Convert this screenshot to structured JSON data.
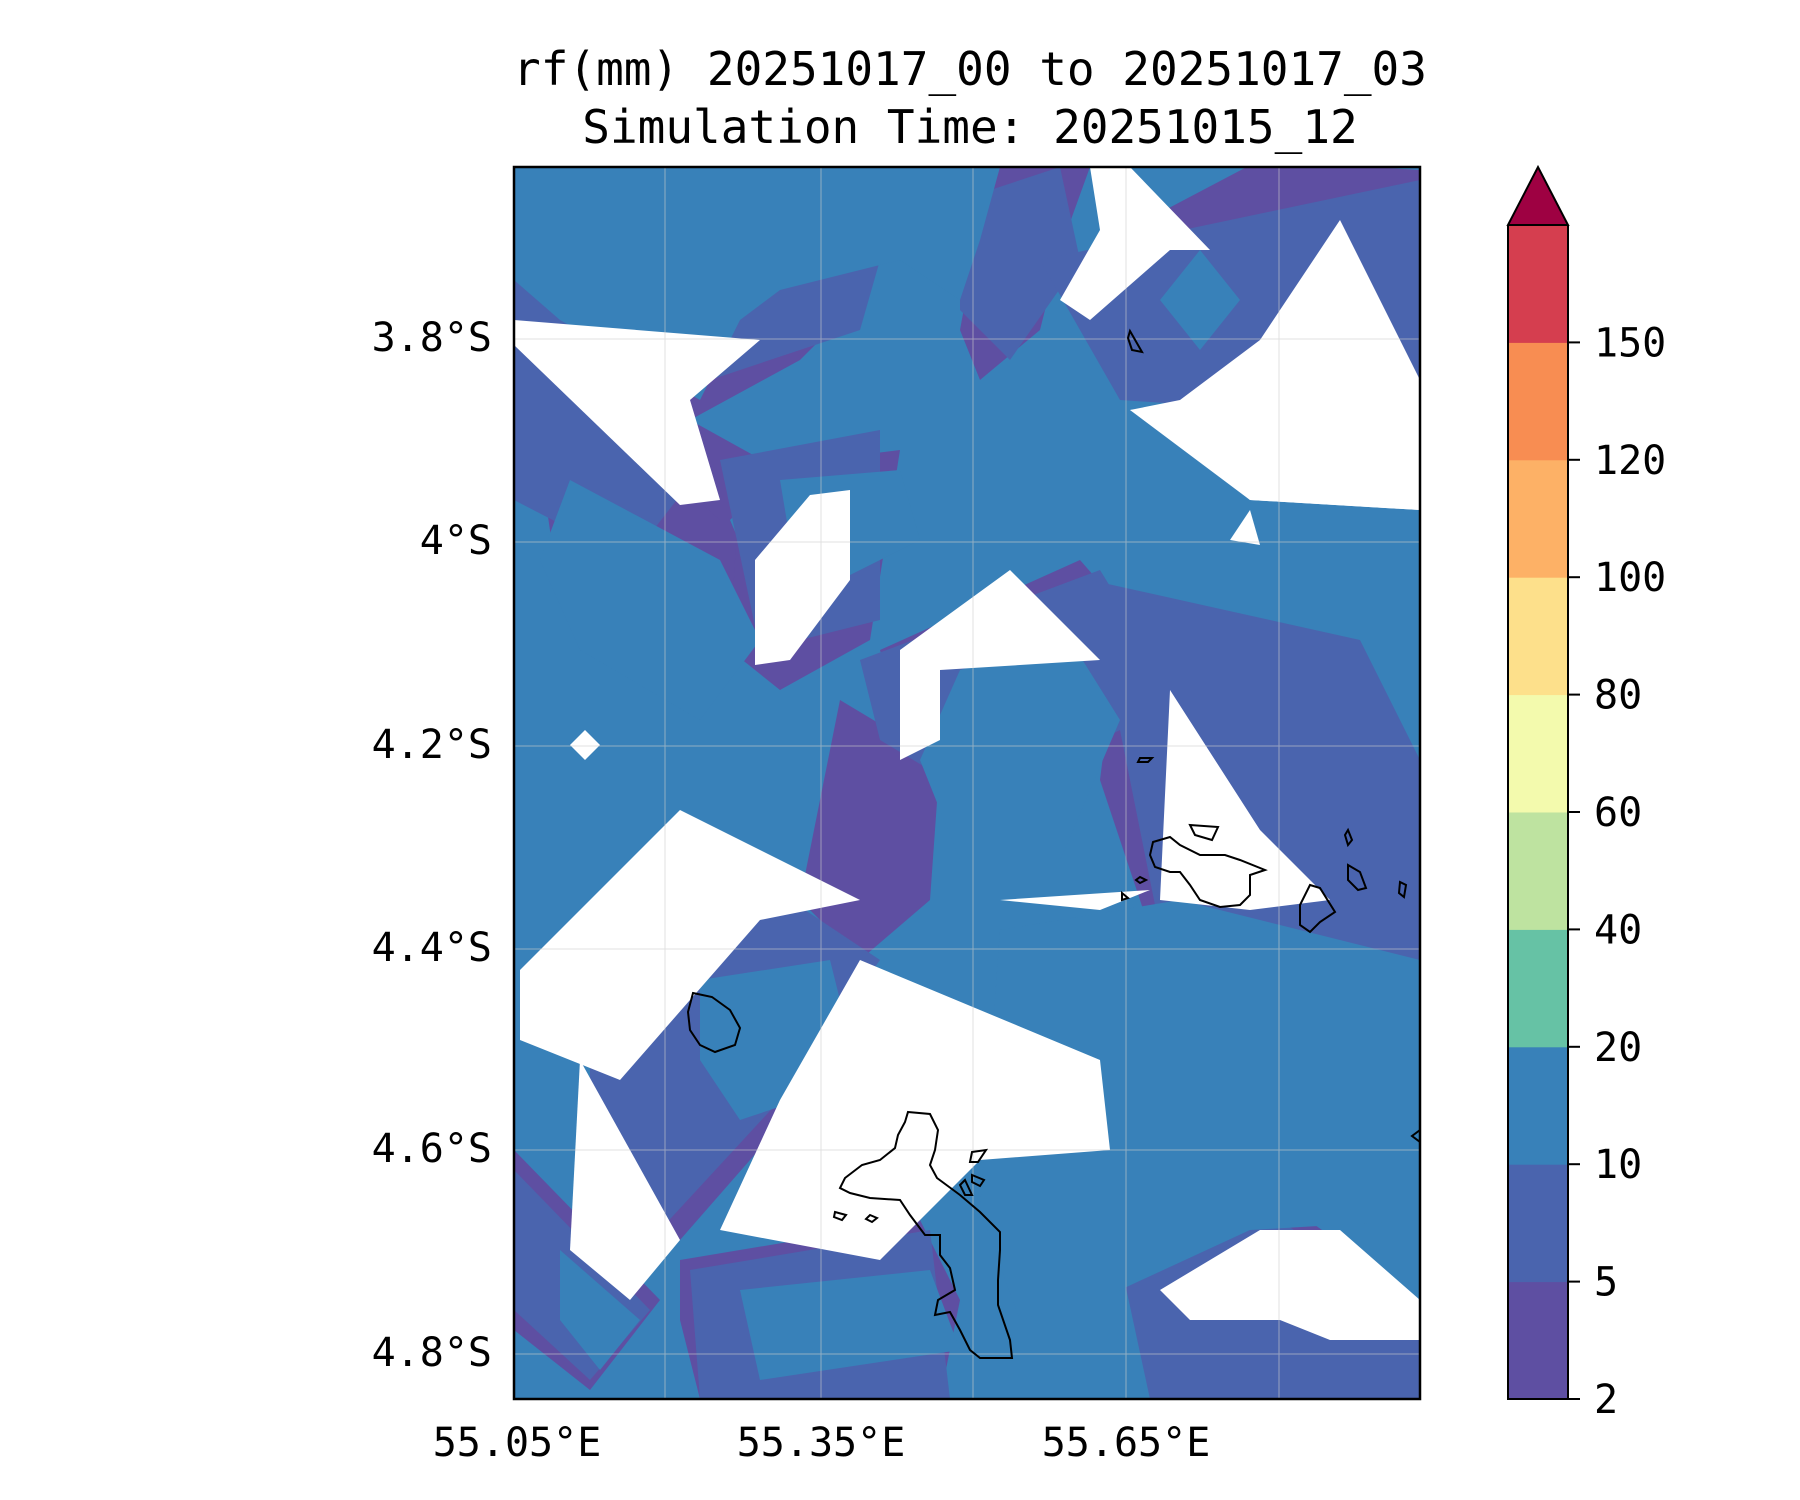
{
  "title": {
    "line1": "rf(mm) 20251017_00 to 20251017_03",
    "line2": "Simulation Time: 20251015_12"
  },
  "map": {
    "lon_labels": [
      "55.05°E",
      "55.35°E",
      "55.65°E"
    ],
    "lat_labels": [
      "3.8°S",
      "4°S",
      "4.2°S",
      "4.4°S",
      "4.6°S",
      "4.8°S"
    ],
    "gridlines": true
  },
  "colorbar": {
    "levels": [
      "2",
      "5",
      "10",
      "20",
      "40",
      "60",
      "80",
      "100",
      "120",
      "150"
    ],
    "colors": [
      "#5E4FA2",
      "#4A64AE",
      "#3881B9",
      "#66C2A5",
      "#BEE3A0",
      "#F3FAAD",
      "#FDE08B",
      "#FDB166",
      "#F88D52",
      "#D53E4F"
    ],
    "extend_color": "#9E0142",
    "extend": "max"
  },
  "field_colors": {
    "level_2_5": "#5E4FA2",
    "level_5_10": "#4A64AE",
    "level_10_20": "#3881B9",
    "coastline": "#000000"
  }
}
